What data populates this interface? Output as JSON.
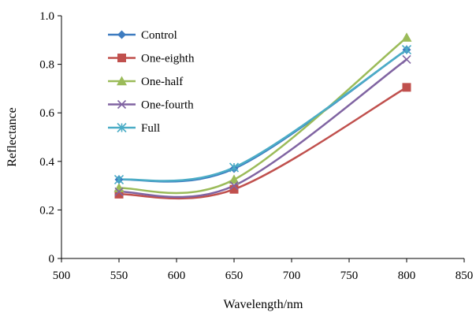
{
  "chart_data": {
    "type": "line",
    "xlabel": "Wavelength/nm",
    "ylabel": "Reflectance",
    "xlim": [
      500,
      850
    ],
    "ylim": [
      0,
      1.0
    ],
    "x_ticks": [
      500,
      550,
      600,
      650,
      700,
      750,
      800,
      850
    ],
    "y_ticks": [
      0,
      0.2,
      0.4,
      0.6,
      0.8,
      1.0
    ],
    "x_tick_labels": [
      "500",
      "550",
      "600",
      "650",
      "700",
      "750",
      "800",
      "850"
    ],
    "y_tick_labels": [
      "0",
      "0.2",
      "0.4",
      "0.6",
      "0.8",
      "1.0"
    ],
    "x": [
      550,
      650,
      800
    ],
    "smooth": true,
    "grid": false,
    "legend_position": "top-left",
    "series": [
      {
        "name": "Control",
        "values": [
          0.325,
          0.37,
          0.86
        ],
        "color": "#3e7cc0",
        "marker": "diamond"
      },
      {
        "name": "One-eighth",
        "values": [
          0.265,
          0.285,
          0.705
        ],
        "color": "#c0504d",
        "marker": "square"
      },
      {
        "name": "One-half",
        "values": [
          0.29,
          0.325,
          0.91
        ],
        "color": "#9bbb59",
        "marker": "triangle"
      },
      {
        "name": "One-fourth",
        "values": [
          0.275,
          0.3,
          0.82
        ],
        "color": "#8064a2",
        "marker": "x"
      },
      {
        "name": "Full",
        "values": [
          0.325,
          0.375,
          0.86
        ],
        "color": "#4bacc6",
        "marker": "star"
      }
    ]
  }
}
